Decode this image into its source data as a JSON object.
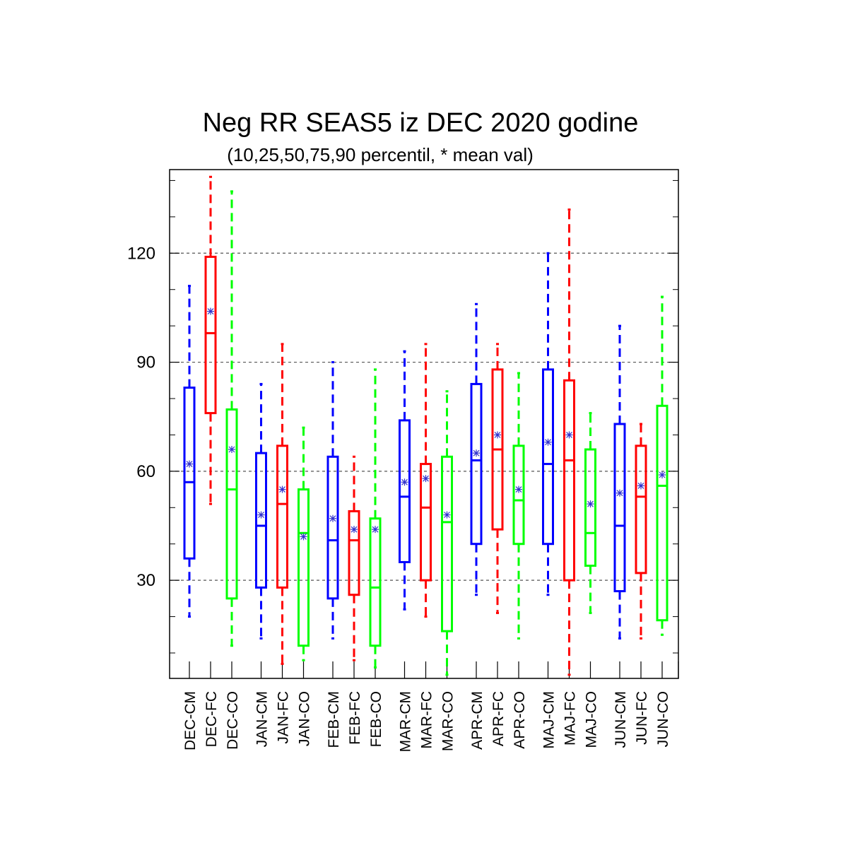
{
  "chart_data": {
    "type": "boxplot",
    "title": "Neg RR SEAS5 iz DEC 2020 godine",
    "subtitle": "(10,25,50,75,90 percentil, * mean val)",
    "ylim": [
      3,
      143
    ],
    "yticks": [
      30,
      60,
      90,
      120
    ],
    "grid": "horizontal dashed at major ticks",
    "colors": {
      "CM": "#0000ff",
      "FC": "#ff0000",
      "CO": "#00ff00",
      "mean_marker": "#3333cc"
    },
    "groups": [
      {
        "boxes": [
          {
            "label": "DEC-CM",
            "type": "CM",
            "p10": 20,
            "p25": 36,
            "p50": 57,
            "p75": 83,
            "p90": 111,
            "mean": 62
          },
          {
            "label": "DEC-FC",
            "type": "FC",
            "p10": 51,
            "p25": 76,
            "p50": 98,
            "p75": 119,
            "p90": 141,
            "mean": 104
          },
          {
            "label": "DEC-CO",
            "type": "CO",
            "p10": 12,
            "p25": 25,
            "p50": 55,
            "p75": 77,
            "p90": 137,
            "mean": 66
          }
        ]
      },
      {
        "boxes": [
          {
            "label": "JAN-CM",
            "type": "CM",
            "p10": 14,
            "p25": 28,
            "p50": 45,
            "p75": 65,
            "p90": 84,
            "mean": 48
          },
          {
            "label": "JAN-FC",
            "type": "FC",
            "p10": 7,
            "p25": 28,
            "p50": 51,
            "p75": 67,
            "p90": 95,
            "mean": 55
          },
          {
            "label": "JAN-CO",
            "type": "CO",
            "p10": 8,
            "p25": 12,
            "p50": 43,
            "p75": 55,
            "p90": 72,
            "mean": 42
          }
        ]
      },
      {
        "boxes": [
          {
            "label": "FEB-CM",
            "type": "CM",
            "p10": 14,
            "p25": 25,
            "p50": 41,
            "p75": 64,
            "p90": 90,
            "mean": 47
          },
          {
            "label": "FEB-FC",
            "type": "FC",
            "p10": 8,
            "p25": 26,
            "p50": 41,
            "p75": 49,
            "p90": 64,
            "mean": 44
          },
          {
            "label": "FEB-CO",
            "type": "CO",
            "p10": 6,
            "p25": 12,
            "p50": 28,
            "p75": 47,
            "p90": 88,
            "mean": 44
          }
        ]
      },
      {
        "boxes": [
          {
            "label": "MAR-CM",
            "type": "CM",
            "p10": 22,
            "p25": 35,
            "p50": 53,
            "p75": 74,
            "p90": 93,
            "mean": 57
          },
          {
            "label": "MAR-FC",
            "type": "FC",
            "p10": 20,
            "p25": 30,
            "p50": 50,
            "p75": 62,
            "p90": 95,
            "mean": 58
          },
          {
            "label": "MAR-CO",
            "type": "CO",
            "p10": 4,
            "p25": 16,
            "p50": 46,
            "p75": 64,
            "p90": 82,
            "mean": 48
          }
        ]
      },
      {
        "boxes": [
          {
            "label": "APR-CM",
            "type": "CM",
            "p10": 26,
            "p25": 40,
            "p50": 63,
            "p75": 84,
            "p90": 106,
            "mean": 65
          },
          {
            "label": "APR-FC",
            "type": "FC",
            "p10": 21,
            "p25": 44,
            "p50": 66,
            "p75": 88,
            "p90": 95,
            "mean": 70
          },
          {
            "label": "APR-CO",
            "type": "CO",
            "p10": 14,
            "p25": 40,
            "p50": 52,
            "p75": 67,
            "p90": 87,
            "mean": 55
          }
        ]
      },
      {
        "boxes": [
          {
            "label": "MAJ-CM",
            "type": "CM",
            "p10": 26,
            "p25": 40,
            "p50": 62,
            "p75": 88,
            "p90": 120,
            "mean": 68
          },
          {
            "label": "MAJ-FC",
            "type": "FC",
            "p10": 4,
            "p25": 30,
            "p50": 63,
            "p75": 85,
            "p90": 132,
            "mean": 70
          },
          {
            "label": "MAJ-CO",
            "type": "CO",
            "p10": 21,
            "p25": 34,
            "p50": 43,
            "p75": 66,
            "p90": 76,
            "mean": 51
          }
        ]
      },
      {
        "boxes": [
          {
            "label": "JUN-CM",
            "type": "CM",
            "p10": 14,
            "p25": 27,
            "p50": 45,
            "p75": 73,
            "p90": 100,
            "mean": 54
          },
          {
            "label": "JUN-FC",
            "type": "FC",
            "p10": 14,
            "p25": 32,
            "p50": 53,
            "p75": 67,
            "p90": 73,
            "mean": 56
          },
          {
            "label": "JUN-CO",
            "type": "CO",
            "p10": 15,
            "p25": 19,
            "p50": 56,
            "p75": 78,
            "p90": 108,
            "mean": 59
          }
        ]
      }
    ]
  }
}
